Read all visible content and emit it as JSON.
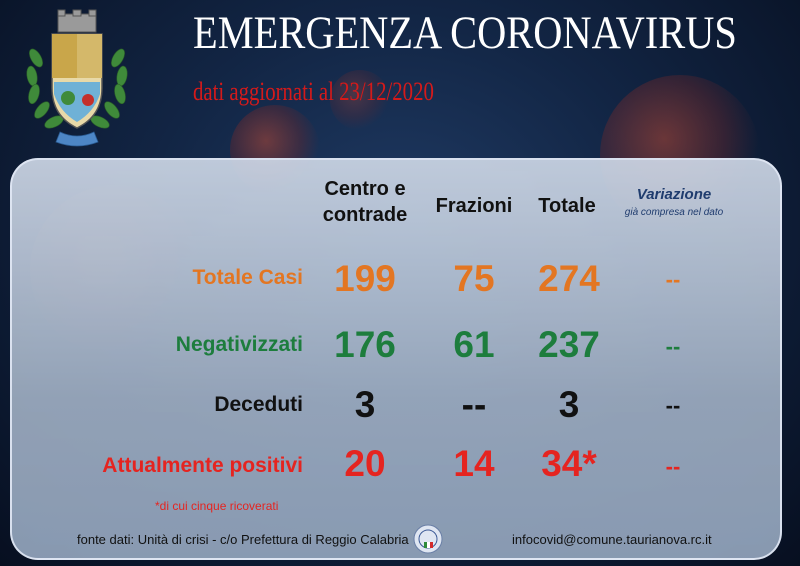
{
  "header": {
    "title": "EMERGENZA CORONAVIRUS",
    "subtitle": "dati aggiornati al 23/12/2020"
  },
  "table": {
    "columns": {
      "centro": "Centro e contrade",
      "frazioni": "Frazioni",
      "totale": "Totale",
      "variazione": "Variazione",
      "variazione_note": "già compresa nel dato"
    },
    "rows": [
      {
        "label": "Totale Casi",
        "centro": "199",
        "frazioni": "75",
        "totale": "274",
        "variazione": "--",
        "color": "#e37622"
      },
      {
        "label": "Negativizzati",
        "centro": "176",
        "frazioni": "61",
        "totale": "237",
        "variazione": "--",
        "color": "#1d7d3d"
      },
      {
        "label": "Deceduti",
        "centro": "3",
        "frazioni": "--",
        "totale": "3",
        "variazione": "--",
        "color": "#111111"
      },
      {
        "label": "Attualmente positivi",
        "centro": "20",
        "frazioni": "14",
        "totale": "34*",
        "variazione": "--",
        "color": "#e52420"
      }
    ],
    "footnote": "*di cui cinque ricoverati"
  },
  "footer": {
    "source": "fonte dati: Unità di crisi - c/o Prefettura di Reggio Calabria",
    "email": "infocovid@comune.taurianova.rc.it"
  },
  "icons": [
    "coat-of-arms-icon",
    "police-seal-icon"
  ]
}
